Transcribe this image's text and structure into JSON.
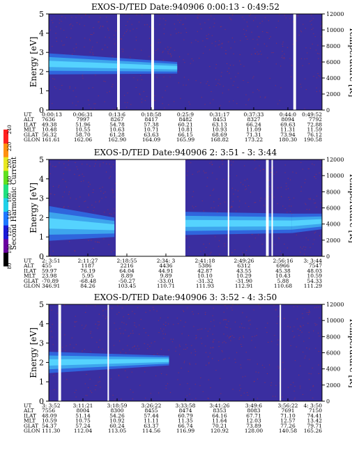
{
  "instrument": "EXOS-D/TED",
  "colors": {
    "background_plasma": "#3a2ea0",
    "speckle": "#c0322e",
    "band_outer": "#2e6ee8",
    "band_inner": "#3fb0f0",
    "band_core": "#58d8ff",
    "data_gap": "#ffffff"
  },
  "colorbar": {
    "title": "Second Harmonic Current",
    "ticks": [
      "80",
      "100",
      "120",
      "140",
      "160",
      "180",
      "200",
      "220",
      "240"
    ],
    "colors": [
      "#000000",
      "#6a00a0",
      "#1a1ad8",
      "#1e78ff",
      "#20d0e8",
      "#20e080",
      "#60e020",
      "#e8e820",
      "#ff9010",
      "#ff2020"
    ]
  },
  "row_labels": [
    "UT",
    "ALT",
    "ILAT",
    "MLT",
    "GLAT",
    "GLON"
  ],
  "chart_data": [
    {
      "type": "heatmap",
      "title": "EXOS-D/TED   Date:940906  0:00:13 - 0:49:52",
      "ylabel": "Energy [eV]",
      "y2label": "Temperature [K]",
      "ylim": [
        0,
        5
      ],
      "y2lim": [
        0,
        12000
      ],
      "yticks": [
        "0",
        "1",
        "2",
        "3",
        "4",
        "5"
      ],
      "y2ticks": [
        "0",
        "2000",
        "4000",
        "6000",
        "8000",
        "10000",
        "12000"
      ],
      "band": {
        "x_range": [
          0,
          0.47
        ],
        "center_ev": [
          2.4,
          2.2
        ],
        "half_width_ev": [
          0.55,
          0.3
        ]
      },
      "gaps": [
        [
          0.25,
          0.26
        ],
        [
          0.375,
          0.385
        ],
        [
          0.895,
          0.905
        ]
      ],
      "orbit_columns": [
        [
          "0:00:13",
          "7636",
          "49.38",
          "10.48",
          "56.32",
          "161.61"
        ],
        [
          "0:06:31",
          "7997",
          "51.96",
          "10.55",
          "58.70",
          "162.06"
        ],
        [
          "0:13:6",
          "8267",
          "54.78",
          "10.63",
          "61.28",
          "162.90"
        ],
        [
          "0:18:58",
          "8417",
          "57.38",
          "10.71",
          "63.63",
          "164.09"
        ],
        [
          "0:25:9",
          "8482",
          "60.21",
          "10.81",
          "66.15",
          "165.99"
        ],
        [
          "0:31:17",
          "8453",
          "63.13",
          "10.93",
          "68.69",
          "168.82"
        ],
        [
          "0:37:33",
          "8327",
          "66.24",
          "11.09",
          "71.31",
          "173.22"
        ],
        [
          "0:44:0",
          "8094",
          "69.63",
          "11.31",
          "73.94",
          "180.30"
        ],
        [
          "0:49:52",
          "7792",
          "72.88",
          "11.59",
          "76.12",
          "190.58"
        ]
      ]
    },
    {
      "type": "heatmap",
      "title": "EXOS-D/TED   Date:940906  2: 3:51 - 3: 3:44",
      "ylabel": "Energy [eV]",
      "y2label": "Temperature [K]",
      "ylim": [
        0,
        5
      ],
      "y2lim": [
        0,
        12000
      ],
      "yticks": [
        "0",
        "1",
        "2",
        "3",
        "4",
        "5"
      ],
      "y2ticks": [
        "0",
        "2000",
        "4000",
        "6000",
        "8000",
        "10000",
        "12000"
      ],
      "band_segments": [
        {
          "x_range": [
            0.0,
            0.24
          ],
          "center_ev": [
            1.7,
            1.5
          ],
          "half_width_ev": [
            0.9,
            0.5
          ]
        },
        {
          "x_range": [
            0.5,
            0.89
          ],
          "center_ev": [
            1.7,
            1.7
          ],
          "half_width_ev": [
            0.6,
            0.5
          ]
        },
        {
          "x_range": [
            0.89,
            1.0
          ],
          "center_ev": [
            1.7,
            1.8
          ],
          "half_width_ev": [
            0.5,
            0.4
          ]
        }
      ],
      "gaps": [
        [
          0.245,
          0.5
        ],
        [
          0.655,
          0.66
        ],
        [
          0.795,
          0.805
        ],
        [
          0.815,
          0.82
        ]
      ],
      "orbit_columns": [
        [
          "2: 3:51",
          "455",
          "59.97",
          "23.98",
          "-70.89",
          "346.91"
        ],
        [
          "2:11:27",
          "1187",
          "76.19",
          "5.95",
          "-68.48",
          "84.26"
        ],
        [
          "2:18:55",
          "2216",
          "64.04",
          "8.89",
          "-50.27",
          "103.45"
        ],
        [
          "2:34: 3",
          "4436",
          "44.91",
          "9.89",
          "-33.01",
          "110.71"
        ],
        [
          "2:41:18",
          "5386",
          "42.87",
          "10.10",
          "-31.32",
          "111.93"
        ],
        [
          "2:49:26",
          "6312",
          "43.55",
          "10.29",
          "-31.90",
          "112.91"
        ],
        [
          "2:56:16",
          "6966",
          "45.38",
          "10.43",
          "5.88",
          "110.68"
        ],
        [
          "3: 3:44",
          "7547",
          "48.03",
          "10.59",
          "54.33",
          "111.29"
        ]
      ]
    },
    {
      "type": "heatmap",
      "title": "EXOS-D/TED   Date:940906  3: 3:52 - 4: 3:50",
      "ylabel": "Energy [eV]",
      "y2label": "Temperature [K]",
      "ylim": [
        0,
        5
      ],
      "y2lim": [
        0,
        12000
      ],
      "yticks": [
        "0",
        "1",
        "2",
        "3",
        "4",
        "5"
      ],
      "y2ticks": [
        "0",
        "2000",
        "4000",
        "6000",
        "8000",
        "10000",
        "12000"
      ],
      "band": {
        "x_range": [
          0,
          0.44
        ],
        "center_ev": [
          2.0,
          2.1
        ],
        "half_width_ev": [
          0.55,
          0.25
        ]
      },
      "gaps": [
        [
          0.035,
          0.045
        ],
        [
          0.215,
          0.22
        ],
        [
          0.845,
          0.85
        ]
      ],
      "orbit_columns": [
        [
          "3: 3:52",
          "7556",
          "48.09",
          "10.59",
          "54.37",
          "111.30"
        ],
        [
          "3:11:21",
          "8004",
          "51.14",
          "10.75",
          "57.24",
          "112.04"
        ],
        [
          "3:18:59",
          "8300",
          "54.26",
          "10.92",
          "60.24",
          "113.05"
        ],
        [
          "3:26:22",
          "8455",
          "57.44",
          "11.11",
          "63.37",
          "114.56"
        ],
        [
          "3:33:58",
          "8474",
          "60.79",
          "11.35",
          "66.74",
          "116.99"
        ],
        [
          "3:41:26",
          "8353",
          "64.16",
          "11.64",
          "70.21",
          "120.92"
        ],
        [
          "3:49:6",
          "8083",
          "67.71",
          "12.03",
          "73.89",
          "128.00"
        ],
        [
          "3:56:22",
          "7691",
          "71.10",
          "12.57",
          "77.26",
          "140.58"
        ],
        [
          "4: 3:50",
          "7150",
          "74.41",
          "13.42",
          "79.71",
          "165.26"
        ]
      ]
    }
  ]
}
